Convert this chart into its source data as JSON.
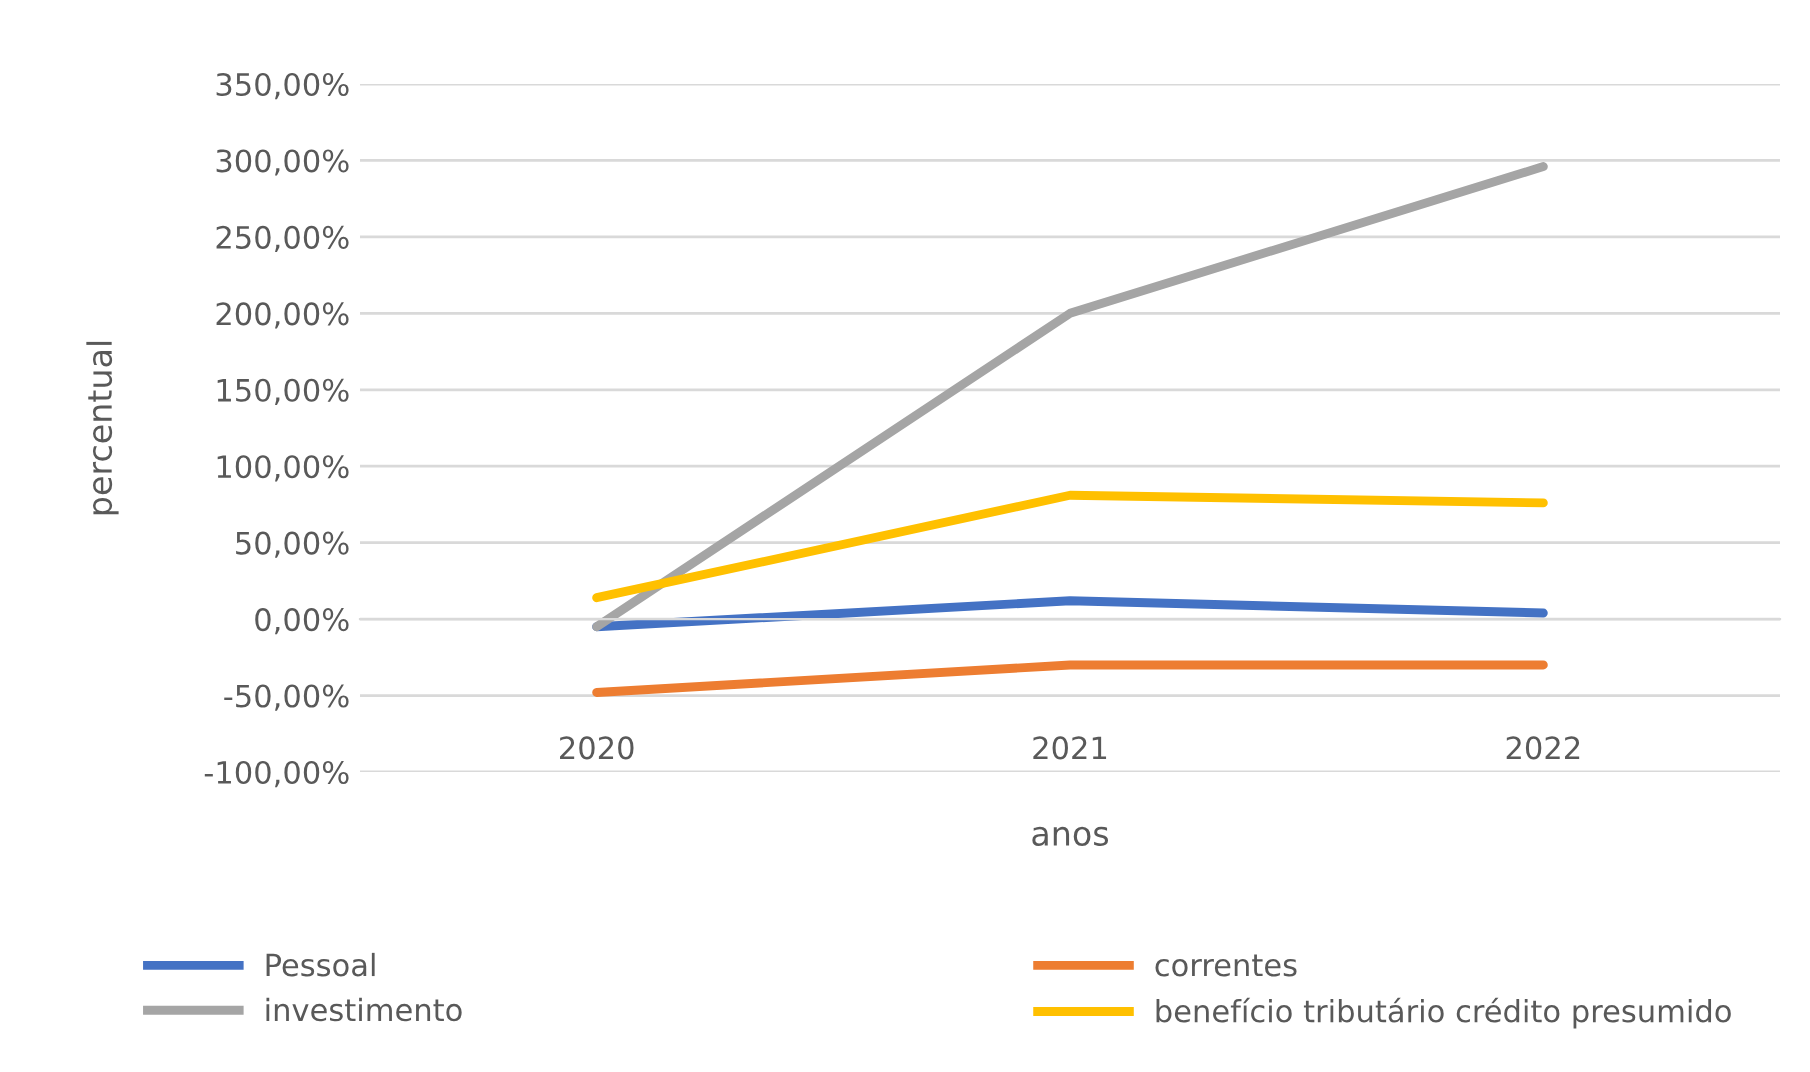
{
  "chart_data": {
    "type": "line",
    "xlabel": "anos",
    "ylabel": "percentual",
    "categories": [
      "2020",
      "2021",
      "2022"
    ],
    "series": [
      {
        "name": "Pessoal",
        "color": "#4472c4",
        "values": [
          -5,
          12,
          4
        ]
      },
      {
        "name": "correntes",
        "color": "#ed7d31",
        "values": [
          -48,
          -30,
          -30
        ]
      },
      {
        "name": "investimento",
        "color": "#a5a5a5",
        "values": [
          -5,
          200,
          296
        ]
      },
      {
        "name": "benefício tributário crédito presumido",
        "color": "#ffc000",
        "values": [
          14,
          81,
          76
        ]
      }
    ],
    "ylim": [
      -100,
      350
    ],
    "yticks": [
      {
        "value": -100,
        "label": "-100,00%"
      },
      {
        "value": -50,
        "label": "-50,00%"
      },
      {
        "value": 0,
        "label": "0,00%"
      },
      {
        "value": 50,
        "label": "50,00%"
      },
      {
        "value": 100,
        "label": "100,00%"
      },
      {
        "value": 150,
        "label": "150,00%"
      },
      {
        "value": 200,
        "label": "200,00%"
      },
      {
        "value": 250,
        "label": "250,00%"
      },
      {
        "value": 300,
        "label": "300,00%"
      },
      {
        "value": 350,
        "label": "350,00%"
      }
    ],
    "grid": "y",
    "legend": "bottom",
    "marker": "none",
    "line_style": "solid"
  }
}
